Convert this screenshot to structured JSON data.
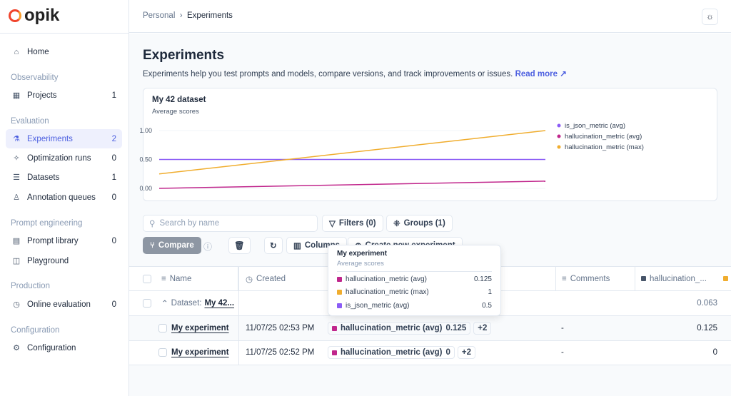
{
  "app": {
    "logo": "opik"
  },
  "sidebar": {
    "home": "Home",
    "sections": [
      {
        "title": "Observability",
        "items": [
          {
            "label": "Projects",
            "count": "1",
            "icon": "grid-icon"
          }
        ]
      },
      {
        "title": "Evaluation",
        "items": [
          {
            "label": "Experiments",
            "count": "2",
            "icon": "flask-icon",
            "active": true
          },
          {
            "label": "Optimization runs",
            "count": "0",
            "icon": "sparkles-icon"
          },
          {
            "label": "Datasets",
            "count": "1",
            "icon": "database-icon"
          },
          {
            "label": "Annotation queues",
            "count": "0",
            "icon": "user-pen-icon"
          }
        ]
      },
      {
        "title": "Prompt engineering",
        "items": [
          {
            "label": "Prompt library",
            "count": "0",
            "icon": "file-icon"
          },
          {
            "label": "Playground",
            "count": "",
            "icon": "blocks-icon"
          }
        ]
      },
      {
        "title": "Production",
        "items": [
          {
            "label": "Online evaluation",
            "count": "0",
            "icon": "gauge-icon"
          }
        ]
      },
      {
        "title": "Configuration",
        "items": [
          {
            "label": "Configuration",
            "count": "",
            "icon": "gear-icon"
          }
        ]
      }
    ]
  },
  "header": {
    "breadcrumb": [
      "Personal",
      "Experiments"
    ]
  },
  "page": {
    "title": "Experiments",
    "description": "Experiments help you test prompts and models, compare versions, and track improvements or issues.",
    "read_more": "Read more"
  },
  "chart_data": {
    "type": "line",
    "title": "My 42 dataset",
    "subtitle": "Average scores",
    "ylim": [
      0,
      1
    ],
    "yticks": [
      "0.00",
      "0.50",
      "1.00"
    ],
    "grid": true,
    "legend": "right",
    "x": [
      1,
      2
    ],
    "series": [
      {
        "name": "is_json_metric (avg)",
        "color": "#8b5cf6",
        "values": [
          0.5,
          0.5
        ]
      },
      {
        "name": "hallucination_metric (avg)",
        "color": "#c0268c",
        "values": [
          0,
          0.125
        ]
      },
      {
        "name": "hallucination_metric (max)",
        "color": "#f0ad2e",
        "values": [
          0.25,
          1
        ]
      }
    ]
  },
  "toolbar": {
    "search_placeholder": "Search by name",
    "filters": "Filters (0)",
    "groups": "Groups (1)",
    "compare": "Compare",
    "columns": "Columns",
    "create": "Create new experiment"
  },
  "table": {
    "headers": {
      "name": "Name",
      "created": "Created",
      "comments": "Comments",
      "score_col": "hallucination_..."
    },
    "group": {
      "prefix": "Dataset:",
      "name": "My 42...",
      "score": "0.063"
    },
    "rows": [
      {
        "name": "My experiment",
        "created": "11/07/25 02:53 PM",
        "tag": "hallucination_metric (avg)",
        "tag_value": "0.125",
        "more": "+2",
        "comments": "-",
        "score": "0.125"
      },
      {
        "name": "My experiment",
        "created": "11/07/25 02:52 PM",
        "tag": "hallucination_metric (avg)",
        "tag_value": "0",
        "more": "+2",
        "comments": "-",
        "score": "0"
      }
    ]
  },
  "tooltip": {
    "title": "My experiment",
    "subtitle": "Average scores",
    "rows": [
      {
        "label": "hallucination_metric (avg)",
        "value": "0.125",
        "color": "#c0268c"
      },
      {
        "label": "hallucination_metric (max)",
        "value": "1",
        "color": "#f0ad2e"
      },
      {
        "label": "is_json_metric (avg)",
        "value": "0.5",
        "color": "#8b5cf6"
      }
    ]
  }
}
